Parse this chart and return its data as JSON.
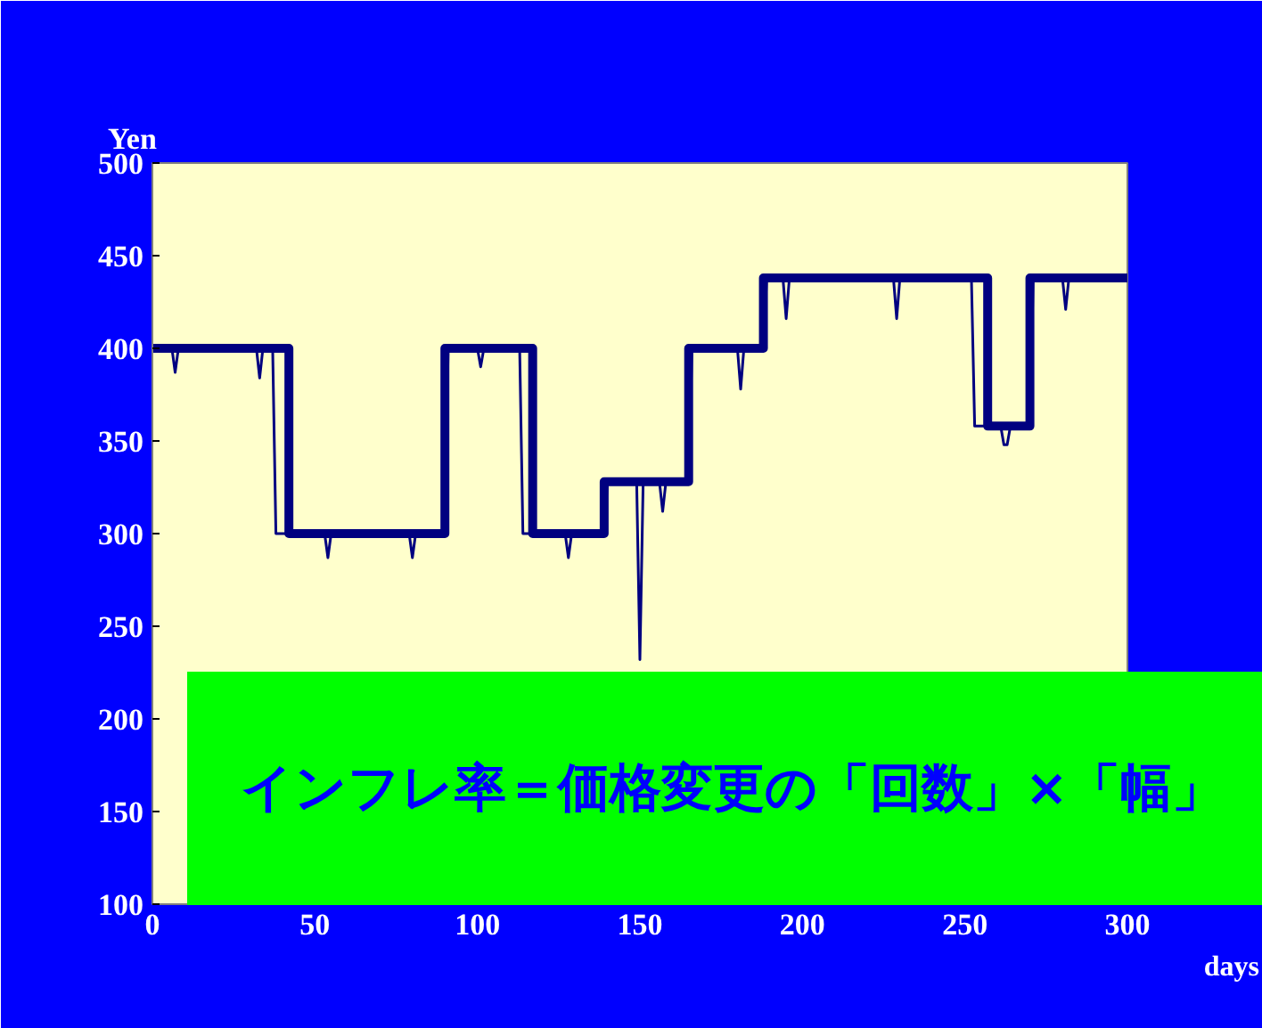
{
  "chart_data": {
    "type": "line",
    "xlabel": "days",
    "ylabel": "Yen",
    "xlim": [
      0,
      300
    ],
    "ylim": [
      100,
      500
    ],
    "xticks": [
      0,
      50,
      100,
      150,
      200,
      250,
      300
    ],
    "yticks": [
      100,
      150,
      200,
      250,
      300,
      350,
      400,
      450,
      500
    ],
    "series": [
      {
        "color": "#000080",
        "x": [
          0,
          6,
          7,
          8,
          32,
          33,
          34,
          37,
          38,
          53,
          54,
          55,
          79,
          80,
          81,
          90,
          91,
          100,
          101,
          102,
          113,
          114,
          127,
          128,
          129,
          139,
          140,
          149,
          150,
          151,
          156,
          157,
          158,
          165,
          166,
          180,
          181,
          182,
          188,
          189,
          194,
          195,
          196,
          228,
          229,
          230,
          252,
          253,
          261,
          262,
          263,
          264,
          270,
          271,
          280,
          281,
          282,
          300
        ],
        "values": [
          400,
          400,
          387,
          400,
          400,
          384,
          400,
          400,
          300,
          300,
          287,
          300,
          300,
          287,
          300,
          300,
          400,
          400,
          390,
          400,
          400,
          300,
          300,
          287,
          300,
          300,
          328,
          328,
          232,
          328,
          328,
          312,
          328,
          328,
          400,
          400,
          378,
          400,
          400,
          438,
          438,
          416,
          438,
          438,
          416,
          438,
          438,
          358,
          358,
          348,
          348,
          358,
          358,
          438,
          438,
          421,
          438,
          438
        ]
      },
      {
        "color": "#000080",
        "x": [
          0,
          42,
          42,
          90,
          90,
          117,
          117,
          139,
          139,
          165,
          165,
          188,
          188,
          257,
          257,
          270,
          270,
          300
        ],
        "values": [
          400,
          400,
          300,
          300,
          400,
          400,
          300,
          300,
          328,
          328,
          400,
          400,
          438,
          438,
          358,
          358,
          438,
          438
        ]
      }
    ],
    "annotations": [
      "インフレ率＝価格変更の「回数」×「幅」"
    ]
  }
}
